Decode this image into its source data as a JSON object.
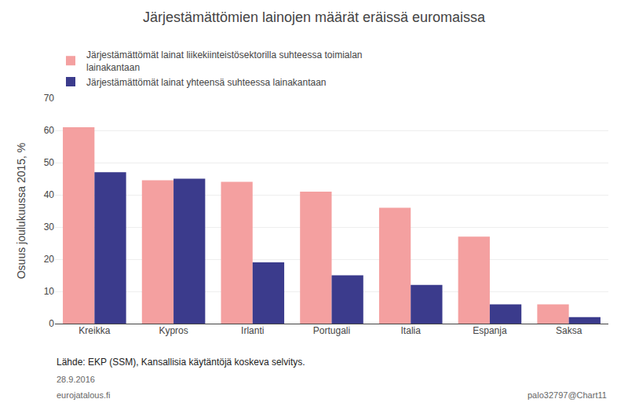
{
  "chart_data": {
    "type": "bar",
    "title": "Järjestämättömien lainojen määrät eräissä euromaissa",
    "y_label": "Osuus joulukuussa 2015, %",
    "categories": [
      "Kreikka",
      "Kypros",
      "Irlanti",
      "Portugali",
      "Italia",
      "Espanja",
      "Saksa"
    ],
    "series": [
      {
        "name": "Järjestämättömät lainat liikekiinteistösektorilla suhteessa toimialan\nlainakantaan",
        "color": "#F4A0A0",
        "values": [
          61,
          44.5,
          44,
          41,
          36,
          27,
          6
        ]
      },
      {
        "name": "Järjestämättömät lainat yhteensä suhteessa lainakantaan",
        "color": "#3B3B8C",
        "values": [
          47,
          45,
          19,
          15,
          12,
          6,
          2
        ]
      }
    ],
    "ylim": [
      0,
      70
    ],
    "yticks": [
      0,
      10,
      20,
      30,
      40,
      50,
      60,
      70
    ],
    "grid": true,
    "legend": "top left",
    "annotations": [
      "Lähde: EKP (SSM), Kansallisia käytäntöjä koskeva selvitys.",
      "28.9.2016",
      "eurojatalous.fi",
      "palo32797@Chart11"
    ]
  }
}
